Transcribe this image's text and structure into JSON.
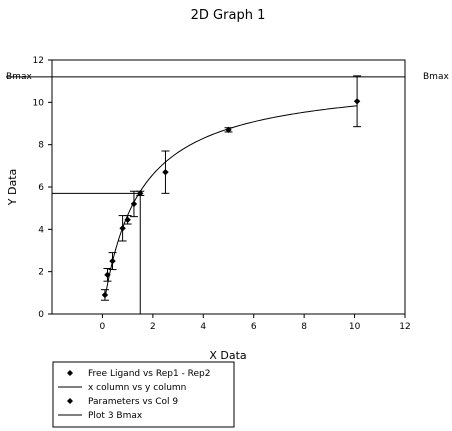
{
  "chart_data": {
    "type": "scatter",
    "title": "2D Graph 1",
    "xlabel": "X Data",
    "ylabel": "Y Data",
    "xlim": [
      -2,
      12
    ],
    "ylim": [
      0,
      12
    ],
    "xticks": [
      0,
      2,
      4,
      6,
      8,
      10,
      12
    ],
    "yticks": [
      0,
      2,
      4,
      6,
      8,
      10,
      12
    ],
    "series": [
      {
        "name": "Free Ligand vs Rep1 - Rep2",
        "kind": "points-with-errorbars",
        "marker": "diamond",
        "x": [
          0.1,
          0.2,
          0.4,
          0.8,
          1.0,
          1.25,
          1.5,
          2.5,
          5.0,
          10.1
        ],
        "y": [
          0.9,
          1.85,
          2.5,
          4.05,
          4.45,
          5.2,
          5.7,
          6.7,
          8.7,
          10.05
        ],
        "yerr": [
          0.25,
          0.3,
          0.4,
          0.6,
          0.2,
          0.6,
          0.1,
          1.0,
          0.1,
          1.2
        ]
      },
      {
        "name": "x column vs y column",
        "kind": "line",
        "bmax": 11.2,
        "kd": 1.4,
        "xrange": [
          0.1,
          10.1
        ]
      },
      {
        "name": "Parameters vs Col 9",
        "kind": "drop-lines",
        "x": 1.5,
        "y": 5.7
      },
      {
        "name": "Plot 3 Bmax",
        "kind": "hline",
        "y": 11.2,
        "label": "Bmax"
      }
    ],
    "legend": "bottom-left"
  }
}
